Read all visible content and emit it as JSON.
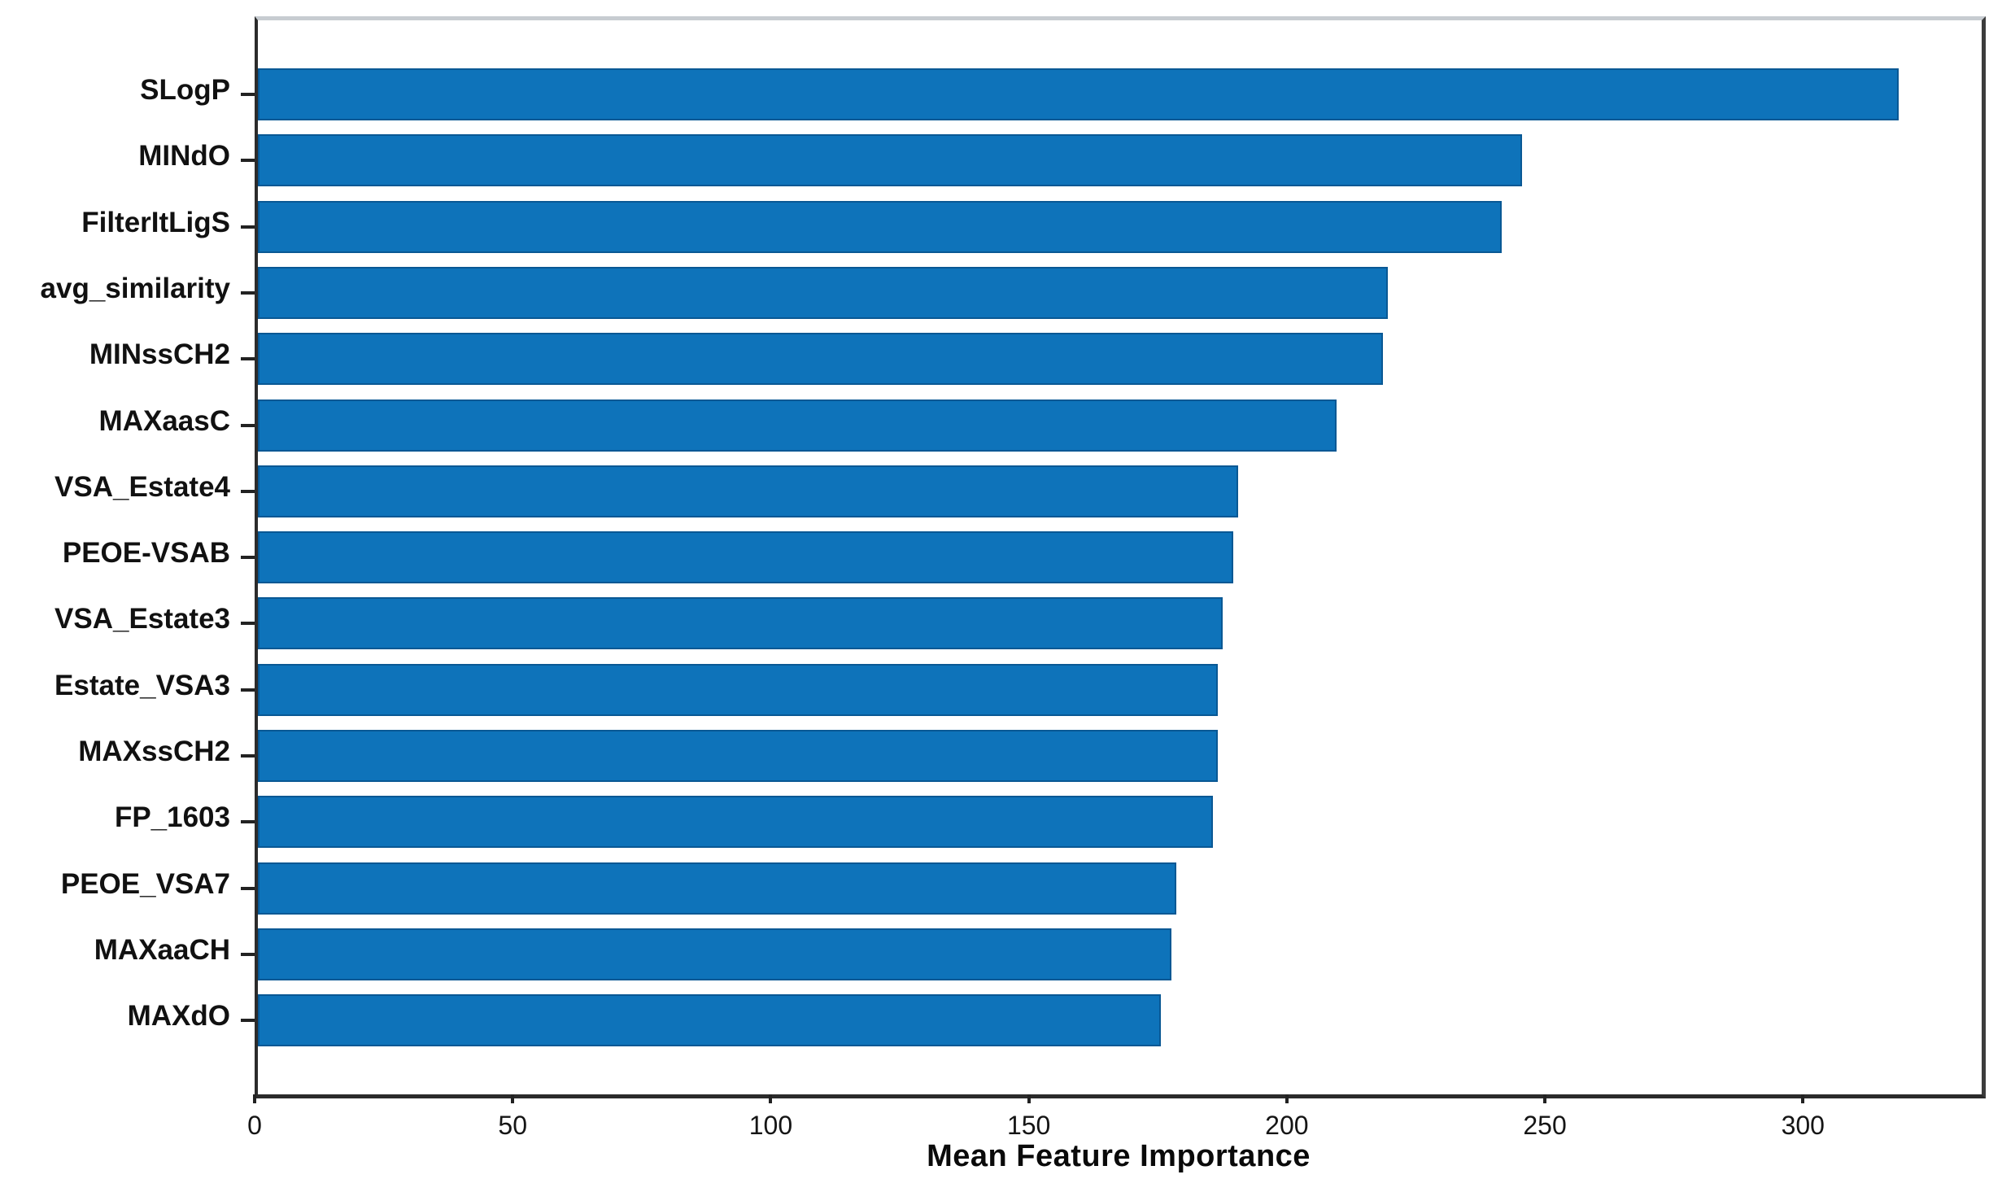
{
  "chart_data": {
    "type": "bar",
    "orientation": "horizontal",
    "title": "",
    "xlabel": "Mean Feature Importance",
    "ylabel": "",
    "categories": [
      "SLogP",
      "MINdO",
      "FilterItLigS",
      "avg_similarity",
      "MINssCH2",
      "MAXaasC",
      "VSA_Estate4",
      "PEOE-VSAB",
      "VSA_Estate3",
      "Estate_VSA3",
      "MAXssCH2",
      "FP_1603",
      "PEOE_VSA7",
      "MAXaaCH",
      "MAXdO"
    ],
    "values": [
      318,
      245,
      241,
      219,
      218,
      209,
      190,
      189,
      187,
      186,
      186,
      185,
      178,
      177,
      175
    ],
    "x_ticks": [
      0,
      50,
      100,
      150,
      200,
      250,
      300
    ],
    "xlim": [
      0,
      334
    ],
    "grid": false,
    "legend": null,
    "bar_color": "#0e73ba",
    "bar_edge_color": "#095894",
    "axis_color": "#2b2b2b",
    "top_spine_color": "#c7ccd1",
    "background_color": "#ffffff"
  }
}
